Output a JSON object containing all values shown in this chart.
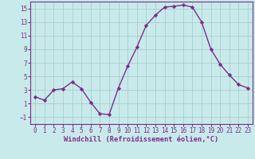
{
  "x": [
    0,
    1,
    2,
    3,
    4,
    5,
    6,
    7,
    8,
    9,
    10,
    11,
    12,
    13,
    14,
    15,
    16,
    17,
    18,
    19,
    20,
    21,
    22,
    23
  ],
  "y": [
    2,
    1.5,
    3,
    3.2,
    4.2,
    3.2,
    1.2,
    -0.5,
    -0.6,
    3.3,
    6.5,
    9.3,
    12.5,
    14.0,
    15.2,
    15.3,
    15.5,
    15.2,
    13.0,
    9.0,
    6.8,
    5.2,
    3.8,
    3.3
  ],
  "line_color": "#7b2d8b",
  "marker": "D",
  "marker_size": 2.2,
  "bg_color": "#c8eaea",
  "grid_color": "#a0c8c8",
  "xlabel": "Windchill (Refroidissement éolien,°C)",
  "xlabel_color": "#7b2d8b",
  "tick_color": "#7b2d8b",
  "ylim": [
    -2,
    16
  ],
  "xlim": [
    -0.5,
    23.5
  ],
  "yticks": [
    -1,
    1,
    3,
    5,
    7,
    9,
    11,
    13,
    15
  ],
  "xticks": [
    0,
    1,
    2,
    3,
    4,
    5,
    6,
    7,
    8,
    9,
    10,
    11,
    12,
    13,
    14,
    15,
    16,
    17,
    18,
    19,
    20,
    21,
    22,
    23
  ],
  "line_width": 1.0,
  "tick_fontsize": 5.5,
  "xlabel_fontsize": 6.2
}
